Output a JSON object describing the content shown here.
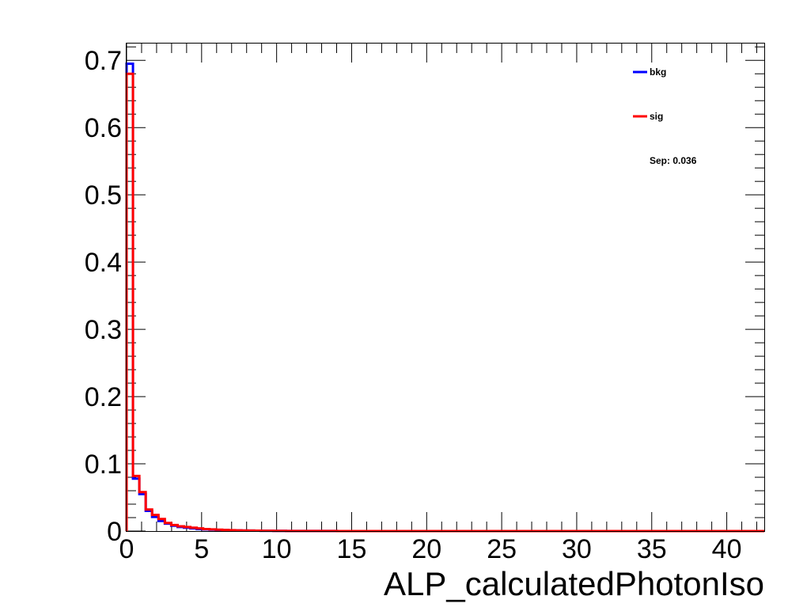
{
  "chart_data": {
    "type": "line",
    "title": "",
    "xlabel": "ALP_calculatedPhotonIso",
    "ylabel": "",
    "xlim": [
      0,
      42.5
    ],
    "ylim": [
      0,
      0.725
    ],
    "x_ticks": [
      0,
      5,
      10,
      15,
      20,
      25,
      30,
      35,
      40
    ],
    "x_tick_labels": [
      "0",
      "5",
      "10",
      "15",
      "20",
      "25",
      "30",
      "35",
      "40"
    ],
    "y_ticks": [
      0,
      0.1,
      0.2,
      0.3,
      0.4,
      0.5,
      0.6,
      0.7
    ],
    "y_tick_labels": [
      "0",
      "0.1",
      "0.2",
      "0.3",
      "0.4",
      "0.5",
      "0.6",
      "0.7"
    ],
    "bin_width": 0.425,
    "legend_position": "top-right",
    "annotation": "Sep: 0.036",
    "series": [
      {
        "name": "bkg",
        "color": "#0000ff",
        "values": [
          0.695,
          0.078,
          0.055,
          0.03,
          0.021,
          0.015,
          0.011,
          0.008,
          0.006,
          0.005,
          0.004,
          0.003,
          0.0025,
          0.002,
          0.0018,
          0.0015,
          0.0012,
          0.001,
          0.0008,
          0.0007,
          0.0006,
          0.0005,
          0.0004,
          0.0003,
          0.0003,
          0.0002,
          0.0002,
          0.0001,
          0.0001,
          0.0001,
          0.0001,
          0.0001,
          0.0001,
          0.0,
          0.0
        ]
      },
      {
        "name": "sig",
        "color": "#ff0000",
        "values": [
          0.68,
          0.082,
          0.058,
          0.032,
          0.024,
          0.018,
          0.012,
          0.009,
          0.007,
          0.006,
          0.005,
          0.004,
          0.003,
          0.0025,
          0.002,
          0.0016,
          0.0013,
          0.001,
          0.0009,
          0.0008,
          0.0006,
          0.0005,
          0.0004,
          0.0003,
          0.0003,
          0.0002,
          0.0002,
          0.0001,
          0.0001,
          0.0001,
          0.0001,
          0.0001,
          0.0001,
          0.0,
          0.0
        ]
      }
    ]
  }
}
